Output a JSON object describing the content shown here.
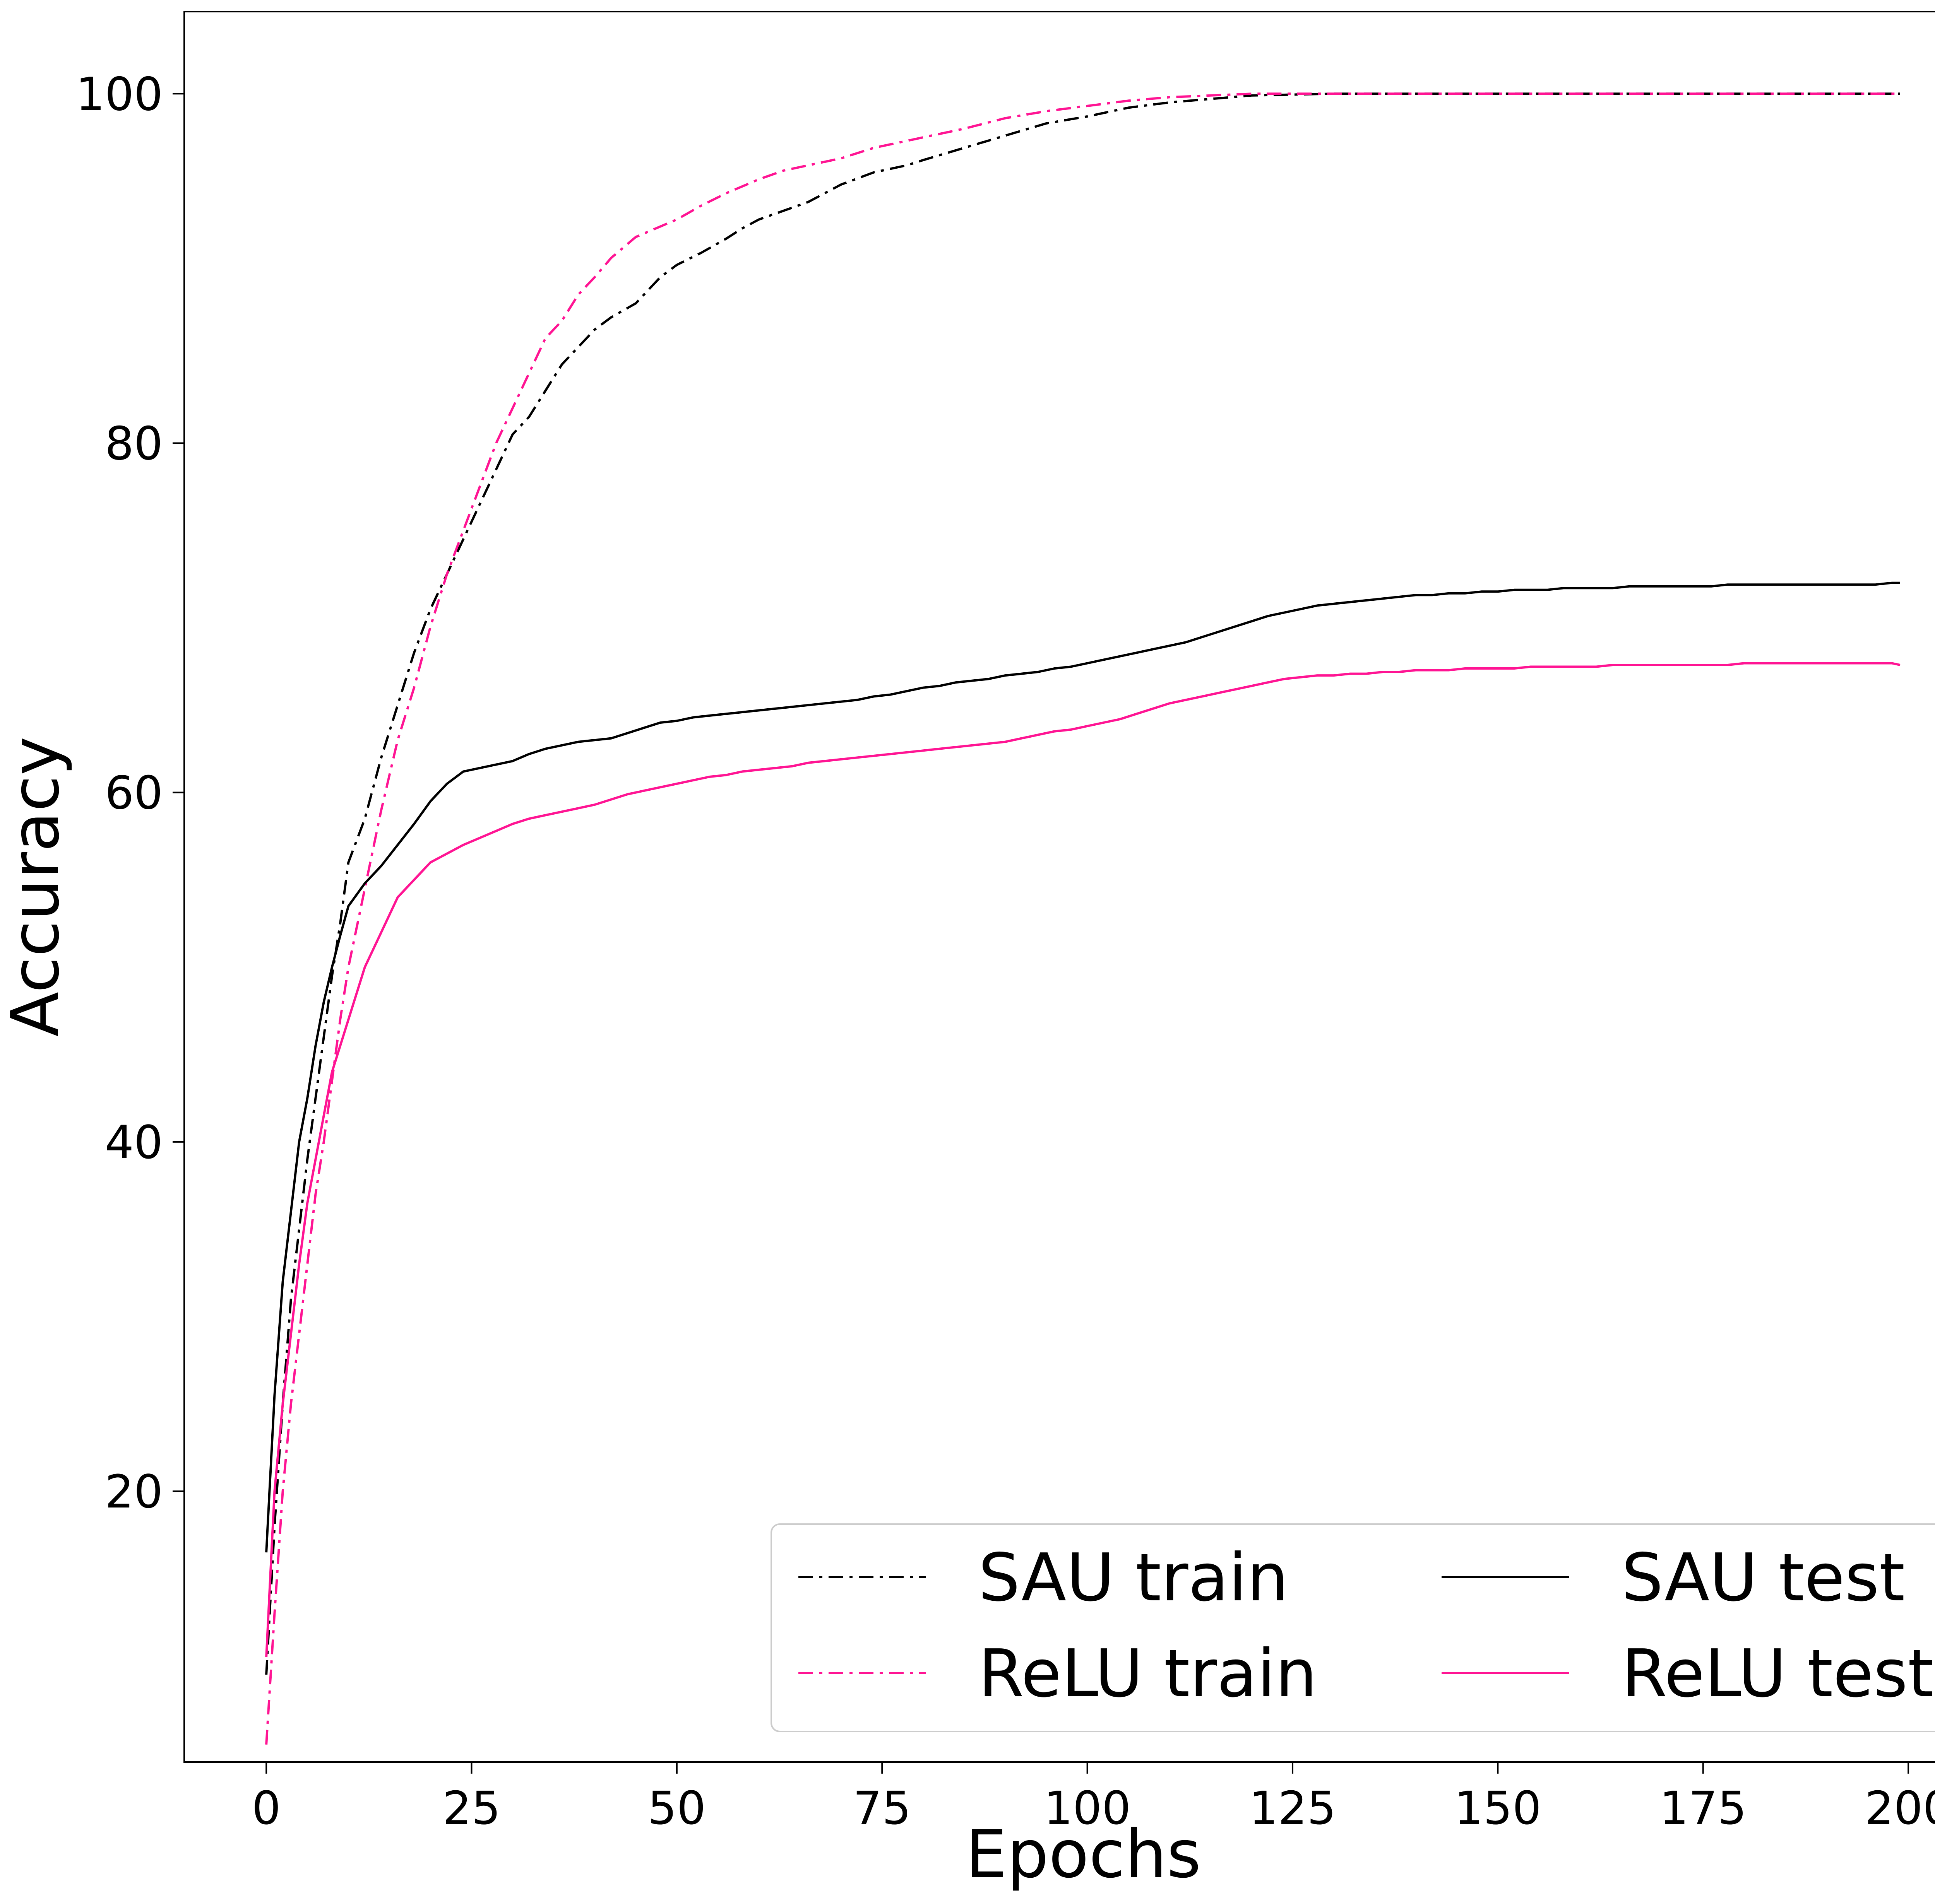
{
  "chart_data": {
    "type": "line",
    "title": "",
    "xlabel": "Epochs",
    "ylabel": "Accuracy",
    "xlim": [
      -10,
      209
    ],
    "ylim": [
      4.5,
      104.7
    ],
    "xticks": [
      0,
      25,
      50,
      75,
      100,
      125,
      150,
      175,
      200
    ],
    "yticks": [
      20,
      40,
      60,
      80,
      100
    ],
    "xtick_labels": [
      "0",
      "25",
      "50",
      "75",
      "100",
      "125",
      "150",
      "175",
      "200"
    ],
    "ytick_labels": [
      "20",
      "40",
      "60",
      "80",
      "100"
    ],
    "grid": false,
    "legend": {
      "placement": "lower-right",
      "columns": 2
    },
    "series": [
      {
        "name": "SAU train",
        "color": "#000000",
        "linestyle": "dashdot",
        "points": [
          [
            0,
            9.5
          ],
          [
            1,
            18
          ],
          [
            2,
            25
          ],
          [
            3,
            31
          ],
          [
            4,
            35
          ],
          [
            5,
            39
          ],
          [
            6,
            42.5
          ],
          [
            7,
            46
          ],
          [
            8,
            49.5
          ],
          [
            9,
            52.5
          ],
          [
            10,
            56
          ],
          [
            12,
            58.5
          ],
          [
            14,
            62
          ],
          [
            16,
            65
          ],
          [
            18,
            68
          ],
          [
            20,
            70.5
          ],
          [
            22,
            72.5
          ],
          [
            24,
            74.5
          ],
          [
            26,
            76.5
          ],
          [
            28,
            78.5
          ],
          [
            30,
            80.5
          ],
          [
            32,
            81.5
          ],
          [
            34,
            83
          ],
          [
            36,
            84.5
          ],
          [
            38,
            85.5
          ],
          [
            40,
            86.5
          ],
          [
            42,
            87.2
          ],
          [
            45,
            88
          ],
          [
            48,
            89.5
          ],
          [
            50,
            90.2
          ],
          [
            53,
            90.9
          ],
          [
            56,
            91.7
          ],
          [
            58,
            92.3
          ],
          [
            60,
            92.8
          ],
          [
            63,
            93.3
          ],
          [
            66,
            93.8
          ],
          [
            70,
            94.8
          ],
          [
            74,
            95.5
          ],
          [
            78,
            95.9
          ],
          [
            80,
            96.2
          ],
          [
            85,
            96.9
          ],
          [
            90,
            97.6
          ],
          [
            95,
            98.3
          ],
          [
            100,
            98.7
          ],
          [
            105,
            99.2
          ],
          [
            110,
            99.5
          ],
          [
            115,
            99.7
          ],
          [
            120,
            99.9
          ],
          [
            130,
            100
          ],
          [
            150,
            100
          ],
          [
            175,
            100
          ],
          [
            199,
            100
          ]
        ]
      },
      {
        "name": "ReLU train",
        "color": "#ff1493",
        "linestyle": "dashdot",
        "points": [
          [
            0,
            5.5
          ],
          [
            1,
            13
          ],
          [
            2,
            20
          ],
          [
            3,
            25
          ],
          [
            4,
            29
          ],
          [
            5,
            33
          ],
          [
            6,
            37
          ],
          [
            7,
            40
          ],
          [
            8,
            43.5
          ],
          [
            9,
            47
          ],
          [
            10,
            50
          ],
          [
            12,
            54.5
          ],
          [
            14,
            59
          ],
          [
            16,
            63
          ],
          [
            18,
            66
          ],
          [
            20,
            69.5
          ],
          [
            22,
            72.5
          ],
          [
            24,
            75
          ],
          [
            26,
            77.5
          ],
          [
            28,
            80
          ],
          [
            30,
            82
          ],
          [
            32,
            84
          ],
          [
            34,
            86
          ],
          [
            36,
            87
          ],
          [
            38,
            88.5
          ],
          [
            40,
            89.5
          ],
          [
            42,
            90.6
          ],
          [
            45,
            91.8
          ],
          [
            48,
            92.4
          ],
          [
            50,
            92.8
          ],
          [
            53,
            93.6
          ],
          [
            56,
            94.3
          ],
          [
            58,
            94.7
          ],
          [
            60,
            95.1
          ],
          [
            63,
            95.6
          ],
          [
            66,
            95.9
          ],
          [
            70,
            96.3
          ],
          [
            74,
            96.9
          ],
          [
            78,
            97.3
          ],
          [
            80,
            97.5
          ],
          [
            85,
            98
          ],
          [
            90,
            98.6
          ],
          [
            95,
            99
          ],
          [
            100,
            99.3
          ],
          [
            105,
            99.6
          ],
          [
            110,
            99.8
          ],
          [
            115,
            99.9
          ],
          [
            120,
            100
          ],
          [
            130,
            100
          ],
          [
            150,
            100
          ],
          [
            175,
            100
          ],
          [
            199,
            100
          ]
        ]
      },
      {
        "name": "SAU test",
        "color": "#000000",
        "linestyle": "solid",
        "points": [
          [
            0,
            16.5
          ],
          [
            1,
            25.5
          ],
          [
            2,
            32
          ],
          [
            3,
            36
          ],
          [
            4,
            40
          ],
          [
            5,
            42.5
          ],
          [
            6,
            45.5
          ],
          [
            7,
            48
          ],
          [
            8,
            50
          ],
          [
            9,
            51.8
          ],
          [
            10,
            53.5
          ],
          [
            12,
            54.8
          ],
          [
            14,
            55.8
          ],
          [
            16,
            57
          ],
          [
            18,
            58.2
          ],
          [
            20,
            59.5
          ],
          [
            22,
            60.5
          ],
          [
            24,
            61.2
          ],
          [
            26,
            61.4
          ],
          [
            28,
            61.6
          ],
          [
            30,
            61.8
          ],
          [
            32,
            62.2
          ],
          [
            34,
            62.5
          ],
          [
            36,
            62.7
          ],
          [
            38,
            62.9
          ],
          [
            40,
            63.0
          ],
          [
            42,
            63.1
          ],
          [
            44,
            63.4
          ],
          [
            46,
            63.7
          ],
          [
            48,
            64.0
          ],
          [
            50,
            64.1
          ],
          [
            52,
            64.3
          ],
          [
            54,
            64.4
          ],
          [
            56,
            64.5
          ],
          [
            58,
            64.6
          ],
          [
            60,
            64.7
          ],
          [
            62,
            64.8
          ],
          [
            64,
            64.9
          ],
          [
            66,
            65.0
          ],
          [
            68,
            65.1
          ],
          [
            70,
            65.2
          ],
          [
            72,
            65.3
          ],
          [
            74,
            65.5
          ],
          [
            76,
            65.6
          ],
          [
            78,
            65.8
          ],
          [
            80,
            66.0
          ],
          [
            82,
            66.1
          ],
          [
            84,
            66.3
          ],
          [
            86,
            66.4
          ],
          [
            88,
            66.5
          ],
          [
            90,
            66.7
          ],
          [
            92,
            66.8
          ],
          [
            94,
            66.9
          ],
          [
            96,
            67.1
          ],
          [
            98,
            67.2
          ],
          [
            100,
            67.4
          ],
          [
            102,
            67.6
          ],
          [
            104,
            67.8
          ],
          [
            106,
            68.0
          ],
          [
            108,
            68.2
          ],
          [
            110,
            68.4
          ],
          [
            112,
            68.6
          ],
          [
            114,
            68.9
          ],
          [
            116,
            69.2
          ],
          [
            118,
            69.5
          ],
          [
            120,
            69.8
          ],
          [
            122,
            70.1
          ],
          [
            124,
            70.3
          ],
          [
            126,
            70.5
          ],
          [
            128,
            70.7
          ],
          [
            130,
            70.8
          ],
          [
            132,
            70.9
          ],
          [
            134,
            71.0
          ],
          [
            136,
            71.1
          ],
          [
            138,
            71.2
          ],
          [
            140,
            71.3
          ],
          [
            142,
            71.3
          ],
          [
            144,
            71.4
          ],
          [
            146,
            71.4
          ],
          [
            148,
            71.5
          ],
          [
            150,
            71.5
          ],
          [
            152,
            71.6
          ],
          [
            154,
            71.6
          ],
          [
            156,
            71.6
          ],
          [
            158,
            71.7
          ],
          [
            160,
            71.7
          ],
          [
            162,
            71.7
          ],
          [
            164,
            71.7
          ],
          [
            166,
            71.8
          ],
          [
            168,
            71.8
          ],
          [
            170,
            71.8
          ],
          [
            172,
            71.8
          ],
          [
            174,
            71.8
          ],
          [
            176,
            71.8
          ],
          [
            178,
            71.9
          ],
          [
            180,
            71.9
          ],
          [
            182,
            71.9
          ],
          [
            184,
            71.9
          ],
          [
            186,
            71.9
          ],
          [
            188,
            71.9
          ],
          [
            190,
            71.9
          ],
          [
            192,
            71.9
          ],
          [
            194,
            71.9
          ],
          [
            196,
            71.9
          ],
          [
            198,
            72.0
          ],
          [
            199,
            72.0
          ]
        ]
      },
      {
        "name": "ReLU test",
        "color": "#ff1493",
        "linestyle": "solid",
        "points": [
          [
            0,
            10.5
          ],
          [
            1,
            20
          ],
          [
            2,
            25
          ],
          [
            3,
            29
          ],
          [
            4,
            33
          ],
          [
            5,
            36.5
          ],
          [
            6,
            39
          ],
          [
            7,
            41.5
          ],
          [
            8,
            44
          ],
          [
            9,
            45.5
          ],
          [
            10,
            47
          ],
          [
            12,
            50
          ],
          [
            14,
            52
          ],
          [
            16,
            54
          ],
          [
            18,
            55
          ],
          [
            20,
            56
          ],
          [
            22,
            56.5
          ],
          [
            24,
            57
          ],
          [
            26,
            57.4
          ],
          [
            28,
            57.8
          ],
          [
            30,
            58.2
          ],
          [
            32,
            58.5
          ],
          [
            34,
            58.7
          ],
          [
            36,
            58.9
          ],
          [
            38,
            59.1
          ],
          [
            40,
            59.3
          ],
          [
            42,
            59.6
          ],
          [
            44,
            59.9
          ],
          [
            46,
            60.1
          ],
          [
            48,
            60.3
          ],
          [
            50,
            60.5
          ],
          [
            52,
            60.7
          ],
          [
            54,
            60.9
          ],
          [
            56,
            61.0
          ],
          [
            58,
            61.2
          ],
          [
            60,
            61.3
          ],
          [
            62,
            61.4
          ],
          [
            64,
            61.5
          ],
          [
            66,
            61.7
          ],
          [
            68,
            61.8
          ],
          [
            70,
            61.9
          ],
          [
            72,
            62.0
          ],
          [
            74,
            62.1
          ],
          [
            76,
            62.2
          ],
          [
            78,
            62.3
          ],
          [
            80,
            62.4
          ],
          [
            82,
            62.5
          ],
          [
            84,
            62.6
          ],
          [
            86,
            62.7
          ],
          [
            88,
            62.8
          ],
          [
            90,
            62.9
          ],
          [
            92,
            63.1
          ],
          [
            94,
            63.3
          ],
          [
            96,
            63.5
          ],
          [
            98,
            63.6
          ],
          [
            100,
            63.8
          ],
          [
            102,
            64.0
          ],
          [
            104,
            64.2
          ],
          [
            106,
            64.5
          ],
          [
            108,
            64.8
          ],
          [
            110,
            65.1
          ],
          [
            112,
            65.3
          ],
          [
            114,
            65.5
          ],
          [
            116,
            65.7
          ],
          [
            118,
            65.9
          ],
          [
            120,
            66.1
          ],
          [
            122,
            66.3
          ],
          [
            124,
            66.5
          ],
          [
            126,
            66.6
          ],
          [
            128,
            66.7
          ],
          [
            130,
            66.7
          ],
          [
            132,
            66.8
          ],
          [
            134,
            66.8
          ],
          [
            136,
            66.9
          ],
          [
            138,
            66.9
          ],
          [
            140,
            67.0
          ],
          [
            142,
            67.0
          ],
          [
            144,
            67.0
          ],
          [
            146,
            67.1
          ],
          [
            148,
            67.1
          ],
          [
            150,
            67.1
          ],
          [
            152,
            67.1
          ],
          [
            154,
            67.2
          ],
          [
            156,
            67.2
          ],
          [
            158,
            67.2
          ],
          [
            160,
            67.2
          ],
          [
            162,
            67.2
          ],
          [
            164,
            67.3
          ],
          [
            166,
            67.3
          ],
          [
            168,
            67.3
          ],
          [
            170,
            67.3
          ],
          [
            172,
            67.3
          ],
          [
            174,
            67.3
          ],
          [
            176,
            67.3
          ],
          [
            178,
            67.3
          ],
          [
            180,
            67.4
          ],
          [
            182,
            67.4
          ],
          [
            184,
            67.4
          ],
          [
            186,
            67.4
          ],
          [
            188,
            67.4
          ],
          [
            190,
            67.4
          ],
          [
            192,
            67.4
          ],
          [
            194,
            67.4
          ],
          [
            196,
            67.4
          ],
          [
            198,
            67.4
          ],
          [
            199,
            67.3
          ]
        ]
      }
    ]
  }
}
